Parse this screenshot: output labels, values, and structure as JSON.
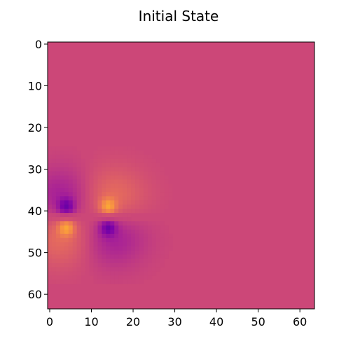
{
  "chart_data": {
    "type": "heatmap",
    "title": "Initial State",
    "xlabel": "",
    "ylabel": "",
    "grid": false,
    "colormap": "plasma",
    "background_color": "#cc4778",
    "grid_size": [
      64,
      64
    ],
    "xlim": [
      -0.5,
      63.5
    ],
    "ylim": [
      63.5,
      -0.5
    ],
    "x_ticks": [
      0,
      10,
      20,
      30,
      40,
      50,
      60
    ],
    "y_ticks": [
      0,
      10,
      20,
      30,
      40,
      50,
      60
    ],
    "x_tick_labels": [
      "0",
      "10",
      "20",
      "30",
      "40",
      "50",
      "60"
    ],
    "y_tick_labels": [
      "0",
      "10",
      "20",
      "30",
      "40",
      "50",
      "60"
    ],
    "value_range": [
      -1,
      1
    ],
    "features": [
      {
        "row": 39,
        "col": 4,
        "value": -1.0
      },
      {
        "row": 39,
        "col": 14,
        "value": 1.0
      },
      {
        "row": 44,
        "col": 4,
        "value": 1.0
      },
      {
        "row": 44,
        "col": 14,
        "value": -1.0
      }
    ]
  }
}
